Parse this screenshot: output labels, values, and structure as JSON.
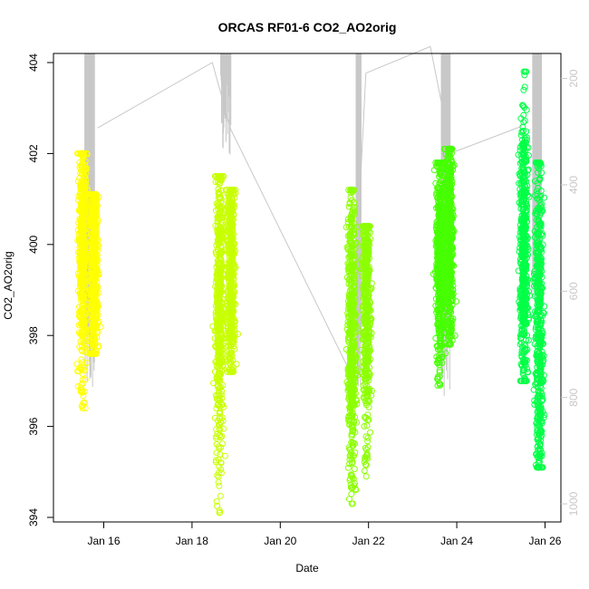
{
  "chart_data": {
    "type": "scatter",
    "title": "ORCAS RF01-6 CO2_AO2orig",
    "xlabel": "Date",
    "ylabel": "CO2_AO2orig",
    "ylim": [
      393.9,
      404.2
    ],
    "x_ticks": [
      "Jan 16",
      "Jan 18",
      "Jan 20",
      "Jan 22",
      "Jan 24",
      "Jan 26"
    ],
    "x_tick_days": [
      16,
      18,
      20,
      22,
      24,
      26
    ],
    "xlim_days": [
      14.86,
      26.36
    ],
    "y_ticks": [
      394,
      396,
      398,
      400,
      402,
      404
    ],
    "y2_ticks": [
      200,
      400,
      600,
      800,
      1000
    ],
    "y2lim": [
      1034,
      153
    ],
    "y2_axis_side": "right",
    "legend": "none",
    "grid": false,
    "colors": {
      "rf01": "#ffff00",
      "rf02": "#c8ff00",
      "rf03": "#8cff00",
      "rf04": "#46ff00",
      "rf05": "#00ff46",
      "secondary_line": "#c8c8c8",
      "secondary_axis": "#c8c8c8"
    },
    "series": [
      {
        "color": "#ffff00",
        "flights": [
          {
            "x": 15.52,
            "y_median": 399.9,
            "y_q1": 399.0,
            "y_q3": 400.6,
            "y_min": 396.4,
            "y_max": 402.0
          },
          {
            "x": 15.78,
            "y_median": 399.6,
            "y_q1": 398.8,
            "y_q3": 400.3,
            "y_min": 397.6,
            "y_max": 401.1
          }
        ]
      },
      {
        "color": "#c8ff00",
        "flights": [
          {
            "x": 18.62,
            "y_median": 398.7,
            "y_q1": 397.8,
            "y_q3": 399.8,
            "y_min": 394.1,
            "y_max": 401.5
          },
          {
            "x": 18.88,
            "y_median": 399.4,
            "y_q1": 398.6,
            "y_q3": 400.2,
            "y_min": 397.2,
            "y_max": 401.2
          }
        ]
      },
      {
        "color": "#8cff00",
        "flights": [
          {
            "x": 21.62,
            "y_median": 398.2,
            "y_q1": 397.3,
            "y_q3": 399.3,
            "y_min": 394.3,
            "y_max": 401.2
          },
          {
            "x": 21.95,
            "y_median": 398.9,
            "y_q1": 398.0,
            "y_q3": 399.8,
            "y_min": 394.9,
            "y_max": 400.4
          }
        ]
      },
      {
        "color": "#46ff00",
        "flights": [
          {
            "x": 23.62,
            "y_median": 399.7,
            "y_q1": 399.0,
            "y_q3": 400.4,
            "y_min": 396.9,
            "y_max": 401.8
          },
          {
            "x": 23.83,
            "y_median": 400.2,
            "y_q1": 399.4,
            "y_q3": 400.9,
            "y_min": 397.8,
            "y_max": 402.1
          }
        ]
      },
      {
        "color": "#00ff46",
        "flights": [
          {
            "x": 25.52,
            "y_median": 399.9,
            "y_q1": 398.9,
            "y_q3": 400.8,
            "y_min": 397.0,
            "y_max": 403.8
          },
          {
            "x": 25.86,
            "y_median": 398.3,
            "y_q1": 397.0,
            "y_q3": 399.5,
            "y_min": 395.1,
            "y_max": 401.8
          }
        ]
      }
    ],
    "secondary_series": {
      "color": "#c8c8c8",
      "points": [
        [
          15.86,
          293
        ],
        [
          18.46,
          170
        ],
        [
          18.88,
          296
        ],
        [
          21.6,
          755
        ],
        [
          21.94,
          190
        ],
        [
          23.4,
          140
        ],
        [
          23.88,
          340
        ],
        [
          25.47,
          290
        ]
      ],
      "profile_blocks": [
        {
          "x_start": 15.57,
          "x_end": 15.79,
          "top": 153,
          "bottom": 800
        },
        {
          "x_start": 18.65,
          "x_end": 18.88,
          "top": 153,
          "bottom": 360
        },
        {
          "x_start": 21.72,
          "x_end": 21.83,
          "top": 153,
          "bottom": 780
        },
        {
          "x_start": 23.65,
          "x_end": 23.85,
          "top": 153,
          "bottom": 800
        },
        {
          "x_start": 25.72,
          "x_end": 25.92,
          "top": 153,
          "bottom": 630
        }
      ]
    }
  }
}
